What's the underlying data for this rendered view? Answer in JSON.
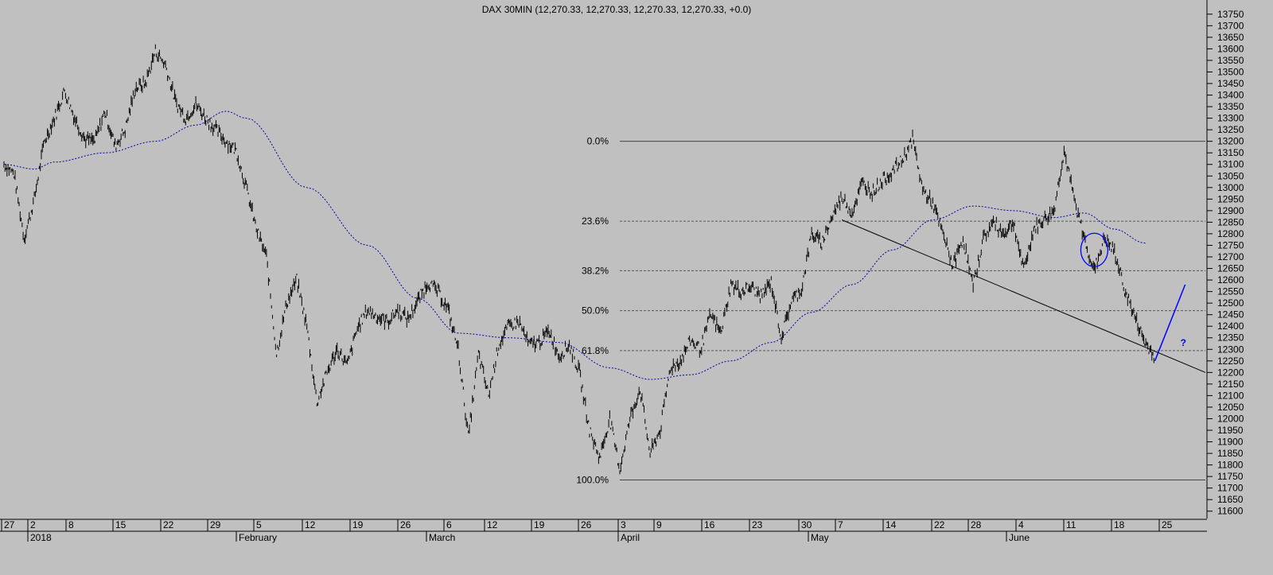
{
  "chart_data": {
    "type": "ohlc",
    "title": "DAX 30MIN (12,270.33, 12,270.33, 12,270.33, 12,270.33, +0.0)",
    "y_axis": {
      "position": "right",
      "ylim": [
        11575,
        13770
      ],
      "ticks": [
        11600,
        11650,
        11700,
        11750,
        11800,
        11850,
        11900,
        11950,
        12000,
        12050,
        12100,
        12150,
        12200,
        12250,
        12300,
        12350,
        12400,
        12450,
        12500,
        12550,
        12600,
        12650,
        12700,
        12750,
        12800,
        12850,
        12900,
        12950,
        13000,
        13050,
        13100,
        13150,
        13200,
        13250,
        13300,
        13350,
        13400,
        13450,
        13500,
        13550,
        13600,
        13650,
        13700,
        13750
      ]
    },
    "x_axis": {
      "day_labels": [
        "27",
        "2",
        "8",
        "15",
        "22",
        "29",
        "5",
        "12",
        "19",
        "26",
        "6",
        "12",
        "19",
        "26",
        "3",
        "9",
        "16",
        "23",
        "30",
        "7",
        "14",
        "22",
        "28",
        "4",
        "11",
        "18",
        "25"
      ],
      "month_labels": [
        "2018",
        "February",
        "March",
        "April",
        "May",
        "June"
      ]
    },
    "price_path": [
      {
        "d": 0,
        "v": 13100
      },
      {
        "d": 1,
        "v": 13060
      },
      {
        "d": 2,
        "v": 12780
      },
      {
        "d": 3,
        "v": 12950
      },
      {
        "d": 4,
        "v": 13200
      },
      {
        "d": 5,
        "v": 13300
      },
      {
        "d": 6,
        "v": 13420
      },
      {
        "d": 7,
        "v": 13300
      },
      {
        "d": 8,
        "v": 13210
      },
      {
        "d": 9,
        "v": 13200
      },
      {
        "d": 10,
        "v": 13330
      },
      {
        "d": 11,
        "v": 13180
      },
      {
        "d": 12,
        "v": 13250
      },
      {
        "d": 13,
        "v": 13430
      },
      {
        "d": 14,
        "v": 13450
      },
      {
        "d": 15,
        "v": 13590
      },
      {
        "d": 16,
        "v": 13530
      },
      {
        "d": 17,
        "v": 13370
      },
      {
        "d": 18,
        "v": 13300
      },
      {
        "d": 19,
        "v": 13360
      },
      {
        "d": 20,
        "v": 13300
      },
      {
        "d": 21,
        "v": 13250
      },
      {
        "d": 22,
        "v": 13200
      },
      {
        "d": 23,
        "v": 13160
      },
      {
        "d": 24,
        "v": 13000
      },
      {
        "d": 25,
        "v": 12820
      },
      {
        "d": 26,
        "v": 12700
      },
      {
        "d": 27,
        "v": 12280
      },
      {
        "d": 28,
        "v": 12500
      },
      {
        "d": 29,
        "v": 12600
      },
      {
        "d": 30,
        "v": 12400
      },
      {
        "d": 31,
        "v": 12070
      },
      {
        "d": 32,
        "v": 12200
      },
      {
        "d": 33,
        "v": 12300
      },
      {
        "d": 34,
        "v": 12230
      },
      {
        "d": 35,
        "v": 12390
      },
      {
        "d": 36,
        "v": 12470
      },
      {
        "d": 37,
        "v": 12440
      },
      {
        "d": 38,
        "v": 12420
      },
      {
        "d": 39,
        "v": 12470
      },
      {
        "d": 40,
        "v": 12430
      },
      {
        "d": 41,
        "v": 12510
      },
      {
        "d": 42,
        "v": 12590
      },
      {
        "d": 43,
        "v": 12550
      },
      {
        "d": 44,
        "v": 12470
      },
      {
        "d": 45,
        "v": 12300
      },
      {
        "d": 46,
        "v": 11920
      },
      {
        "d": 47,
        "v": 12280
      },
      {
        "d": 48,
        "v": 12100
      },
      {
        "d": 49,
        "v": 12320
      },
      {
        "d": 50,
        "v": 12400
      },
      {
        "d": 51,
        "v": 12420
      },
      {
        "d": 52,
        "v": 12320
      },
      {
        "d": 53,
        "v": 12330
      },
      {
        "d": 54,
        "v": 12380
      },
      {
        "d": 55,
        "v": 12270
      },
      {
        "d": 56,
        "v": 12320
      },
      {
        "d": 57,
        "v": 12200
      },
      {
        "d": 58,
        "v": 11950
      },
      {
        "d": 59,
        "v": 11830
      },
      {
        "d": 60,
        "v": 12000
      },
      {
        "d": 61,
        "v": 11780
      },
      {
        "d": 62,
        "v": 12000
      },
      {
        "d": 63,
        "v": 12130
      },
      {
        "d": 64,
        "v": 11850
      },
      {
        "d": 65,
        "v": 11950
      },
      {
        "d": 66,
        "v": 12220
      },
      {
        "d": 67,
        "v": 12250
      },
      {
        "d": 68,
        "v": 12340
      },
      {
        "d": 69,
        "v": 12300
      },
      {
        "d": 70,
        "v": 12450
      },
      {
        "d": 71,
        "v": 12370
      },
      {
        "d": 72,
        "v": 12580
      },
      {
        "d": 73,
        "v": 12550
      },
      {
        "d": 74,
        "v": 12570
      },
      {
        "d": 75,
        "v": 12530
      },
      {
        "d": 76,
        "v": 12590
      },
      {
        "d": 77,
        "v": 12350
      },
      {
        "d": 78,
        "v": 12510
      },
      {
        "d": 79,
        "v": 12560
      },
      {
        "d": 80,
        "v": 12800
      },
      {
        "d": 81,
        "v": 12760
      },
      {
        "d": 82,
        "v": 12870
      },
      {
        "d": 83,
        "v": 12960
      },
      {
        "d": 84,
        "v": 12890
      },
      {
        "d": 85,
        "v": 13020
      },
      {
        "d": 86,
        "v": 12980
      },
      {
        "d": 87,
        "v": 13030
      },
      {
        "d": 88,
        "v": 13070
      },
      {
        "d": 89,
        "v": 13120
      },
      {
        "d": 90,
        "v": 13210
      },
      {
        "d": 91,
        "v": 12990
      },
      {
        "d": 92,
        "v": 12930
      },
      {
        "d": 93,
        "v": 12800
      },
      {
        "d": 94,
        "v": 12660
      },
      {
        "d": 95,
        "v": 12780
      },
      {
        "d": 96,
        "v": 12570
      },
      {
        "d": 97,
        "v": 12780
      },
      {
        "d": 98,
        "v": 12850
      },
      {
        "d": 99,
        "v": 12800
      },
      {
        "d": 100,
        "v": 12850
      },
      {
        "d": 101,
        "v": 12640
      },
      {
        "d": 102,
        "v": 12820
      },
      {
        "d": 103,
        "v": 12860
      },
      {
        "d": 104,
        "v": 12900
      },
      {
        "d": 105,
        "v": 13160
      },
      {
        "d": 106,
        "v": 12950
      },
      {
        "d": 107,
        "v": 12780
      },
      {
        "d": 108,
        "v": 12640
      },
      {
        "d": 109,
        "v": 12780
      },
      {
        "d": 110,
        "v": 12720
      },
      {
        "d": 111,
        "v": 12560
      },
      {
        "d": 112,
        "v": 12440
      },
      {
        "d": 113,
        "v": 12330
      },
      {
        "d": 114,
        "v": 12270
      }
    ],
    "moving_average": [
      {
        "d": 0,
        "v": 13100
      },
      {
        "d": 3,
        "v": 13080
      },
      {
        "d": 5,
        "v": 13110
      },
      {
        "d": 10,
        "v": 13150
      },
      {
        "d": 15,
        "v": 13200
      },
      {
        "d": 19,
        "v": 13270
      },
      {
        "d": 22,
        "v": 13330
      },
      {
        "d": 24,
        "v": 13300
      },
      {
        "d": 30,
        "v": 13000
      },
      {
        "d": 36,
        "v": 12750
      },
      {
        "d": 41,
        "v": 12520
      },
      {
        "d": 45,
        "v": 12370
      },
      {
        "d": 50,
        "v": 12350
      },
      {
        "d": 55,
        "v": 12330
      },
      {
        "d": 60,
        "v": 12220
      },
      {
        "d": 64,
        "v": 12170
      },
      {
        "d": 68,
        "v": 12190
      },
      {
        "d": 72,
        "v": 12250
      },
      {
        "d": 76,
        "v": 12330
      },
      {
        "d": 80,
        "v": 12460
      },
      {
        "d": 84,
        "v": 12580
      },
      {
        "d": 88,
        "v": 12730
      },
      {
        "d": 92,
        "v": 12860
      },
      {
        "d": 96,
        "v": 12920
      },
      {
        "d": 100,
        "v": 12900
      },
      {
        "d": 104,
        "v": 12870
      },
      {
        "d": 107,
        "v": 12890
      },
      {
        "d": 110,
        "v": 12820
      },
      {
        "d": 113,
        "v": 12760
      }
    ],
    "fibonacci": {
      "high": 13200,
      "low": 11735,
      "levels": [
        {
          "label": "0.0%",
          "ratio": 0.0
        },
        {
          "label": "23.6%",
          "ratio": 0.236
        },
        {
          "label": "38.2%",
          "ratio": 0.382
        },
        {
          "label": "50.0%",
          "ratio": 0.5
        },
        {
          "label": "61.8%",
          "ratio": 0.618
        },
        {
          "label": "100.0%",
          "ratio": 1.0
        }
      ]
    },
    "trendline": [
      {
        "d": 83,
        "v": 12860
      },
      {
        "d": 119,
        "v": 12200
      }
    ],
    "projection": {
      "from": {
        "d": 114,
        "v": 12250
      },
      "to": {
        "d": 117,
        "v": 12580
      },
      "label": "?"
    },
    "circle_marker": {
      "d": 108,
      "v": 12730
    }
  }
}
